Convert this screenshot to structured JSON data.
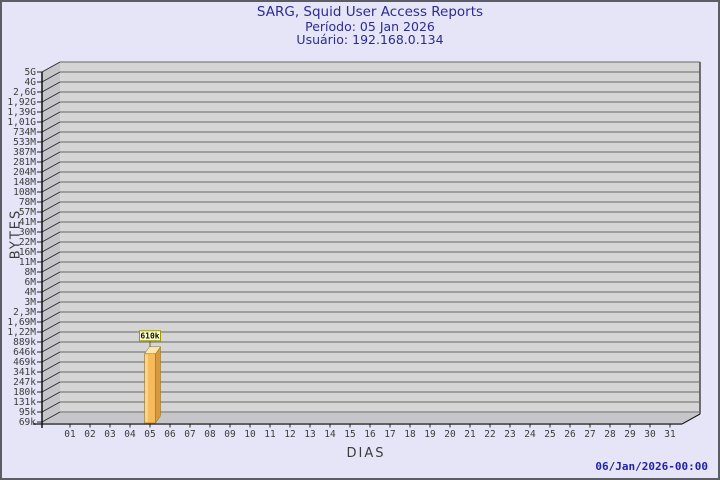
{
  "header": {
    "title": "SARG, Squid User Access Reports",
    "period": "Período: 05 Jan 2026",
    "user": "Usuário: 192.168.0.134"
  },
  "footer": {
    "generated": "06/Jan/2026-00:00"
  },
  "chart_data": {
    "type": "bar",
    "title": "SARG, Squid User Access Reports",
    "subtitle": [
      "Período: 05 Jan 2026",
      "Usuário: 192.168.0.134"
    ],
    "xlabel": "DIAS",
    "ylabel": "BYTES",
    "scale": "log",
    "grid": true,
    "legend": "none",
    "x_categories": [
      "01",
      "02",
      "03",
      "04",
      "05",
      "06",
      "07",
      "08",
      "09",
      "10",
      "11",
      "12",
      "13",
      "14",
      "15",
      "16",
      "17",
      "18",
      "19",
      "20",
      "21",
      "22",
      "23",
      "24",
      "25",
      "26",
      "27",
      "28",
      "29",
      "30",
      "31"
    ],
    "y_tick_labels": [
      "5G",
      "4G",
      "2,6G",
      "1,92G",
      "1,39G",
      "1,01G",
      "734M",
      "533M",
      "387M",
      "281M",
      "204M",
      "148M",
      "108M",
      "78M",
      "57M",
      "41M",
      "30M",
      "22M",
      "16M",
      "11M",
      "8M",
      "6M",
      "4M",
      "3M",
      "2,3M",
      "1,69M",
      "1,22M",
      "889k",
      "646k",
      "469k",
      "341k",
      "247k",
      "180k",
      "131k",
      "95k",
      "69k"
    ],
    "y_tick_values": [
      5000000000,
      4000000000,
      2600000000,
      1920000000,
      1390000000,
      1010000000,
      734000000,
      533000000,
      387000000,
      281000000,
      204000000,
      148000000,
      108000000,
      78000000,
      57000000,
      41000000,
      30000000,
      22000000,
      16000000,
      11000000,
      8000000,
      6000000,
      4000000,
      3000000,
      2300000,
      1690000,
      1220000,
      889000,
      646000,
      469000,
      341000,
      247000,
      180000,
      131000,
      95000,
      69000
    ],
    "bars": [
      {
        "category": "05",
        "value": 610000,
        "label": "610k"
      }
    ],
    "colors": {
      "background": "#e5e5f7",
      "panel": "#d5d5d5",
      "wall": "#c6c6ca",
      "grid": "#666666",
      "axis": "#111111",
      "tick_text": "#3c3c3c",
      "title_text": "#2b2b96",
      "stamp_text": "#2222a8",
      "bar_front": "#f6bb5d",
      "bar_highlight": "#fcd88f",
      "bar_top": "#fde8ac",
      "bar_side": "#d8993d",
      "bar_outline": "#8a6a20",
      "value_box_bg": "#ffffcc",
      "value_box_border": "#9b9b00"
    }
  }
}
